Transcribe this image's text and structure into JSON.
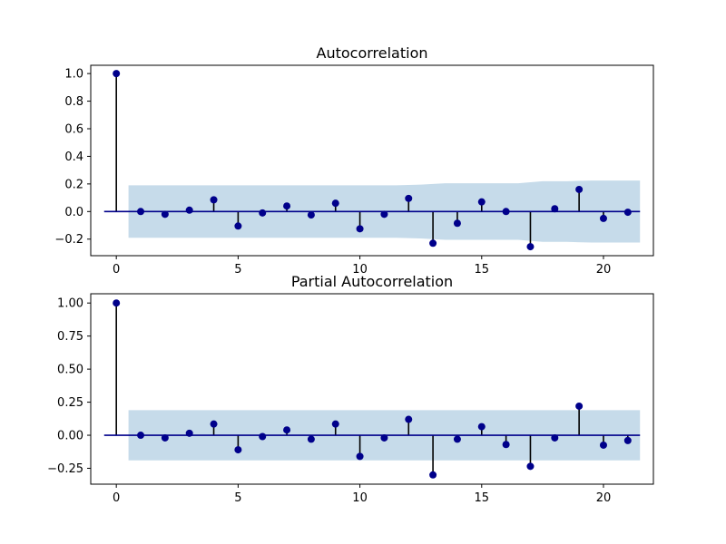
{
  "chart_data": [
    {
      "type": "stem",
      "title": "Autocorrelation",
      "xlabel": "",
      "ylabel": "",
      "xlim": [
        -1.05,
        22.05
      ],
      "ylim": [
        -0.32,
        1.06
      ],
      "xticks": [
        0,
        5,
        10,
        15,
        20
      ],
      "yticks": [
        -0.2,
        0.0,
        0.2,
        0.4,
        0.6,
        0.8,
        1.0
      ],
      "ytick_labels": [
        "−0.2",
        "0.0",
        "0.2",
        "0.4",
        "0.6",
        "0.8",
        "1.0"
      ],
      "lags": [
        0,
        1,
        2,
        3,
        4,
        5,
        6,
        7,
        8,
        9,
        10,
        11,
        12,
        13,
        14,
        15,
        16,
        17,
        18,
        19,
        20,
        21
      ],
      "values": [
        1.0,
        0.0,
        -0.02,
        0.01,
        0.085,
        -0.105,
        -0.01,
        0.04,
        -0.025,
        0.06,
        -0.125,
        -0.02,
        0.095,
        -0.23,
        -0.085,
        0.07,
        0.0,
        -0.255,
        0.02,
        0.16,
        -0.05,
        -0.005
      ],
      "confidence_band_upper": [
        0.19,
        0.19,
        0.19,
        0.19,
        0.19,
        0.19,
        0.19,
        0.19,
        0.19,
        0.19,
        0.19,
        0.19,
        0.195,
        0.205,
        0.205,
        0.205,
        0.205,
        0.22,
        0.22,
        0.225,
        0.225
      ],
      "confidence_band_x": [
        0.5,
        1.5,
        2.5,
        3.5,
        4.5,
        5.5,
        6.5,
        7.5,
        8.5,
        9.5,
        10.5,
        11.5,
        12.5,
        13.5,
        14.5,
        15.5,
        16.5,
        17.5,
        18.5,
        19.5,
        21.5
      ],
      "grid": false,
      "colors": {
        "marker": "#00008b",
        "stem": "#000000",
        "band": "#c6dbea",
        "zero_line": "#00008b"
      }
    },
    {
      "type": "stem",
      "title": "Partial Autocorrelation",
      "xlabel": "",
      "ylabel": "",
      "xlim": [
        -1.05,
        22.05
      ],
      "ylim": [
        -0.37,
        1.07
      ],
      "xticks": [
        0,
        5,
        10,
        15,
        20
      ],
      "yticks": [
        -0.25,
        0.0,
        0.25,
        0.5,
        0.75,
        1.0
      ],
      "ytick_labels": [
        "−0.25",
        "0.00",
        "0.25",
        "0.50",
        "0.75",
        "1.00"
      ],
      "lags": [
        0,
        1,
        2,
        3,
        4,
        5,
        6,
        7,
        8,
        9,
        10,
        11,
        12,
        13,
        14,
        15,
        16,
        17,
        18,
        19,
        20,
        21
      ],
      "values": [
        1.0,
        0.0,
        -0.02,
        0.015,
        0.085,
        -0.11,
        -0.01,
        0.04,
        -0.03,
        0.085,
        -0.16,
        -0.02,
        0.12,
        -0.3,
        -0.03,
        0.065,
        -0.07,
        -0.235,
        -0.02,
        0.22,
        -0.075,
        -0.04
      ],
      "confidence_band_upper": [
        0.19,
        0.19
      ],
      "confidence_band_x": [
        0.5,
        21.5
      ],
      "grid": false,
      "colors": {
        "marker": "#00008b",
        "stem": "#000000",
        "band": "#c6dbea",
        "zero_line": "#00008b"
      }
    }
  ]
}
